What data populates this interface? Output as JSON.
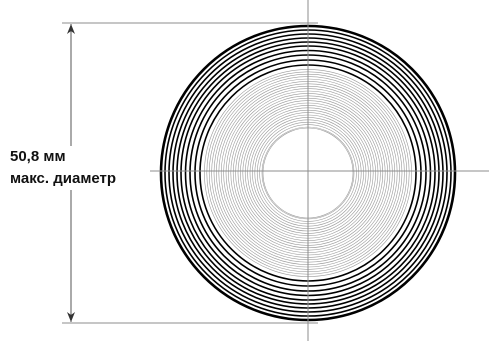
{
  "dimension": {
    "value": "50,8 мм",
    "caption": "макс. диаметр"
  },
  "colors": {
    "outer_rings": "#000000",
    "inner_rings": "#9a9a9a",
    "guide_lines": "#8c8c8c",
    "background": "#ffffff"
  }
}
